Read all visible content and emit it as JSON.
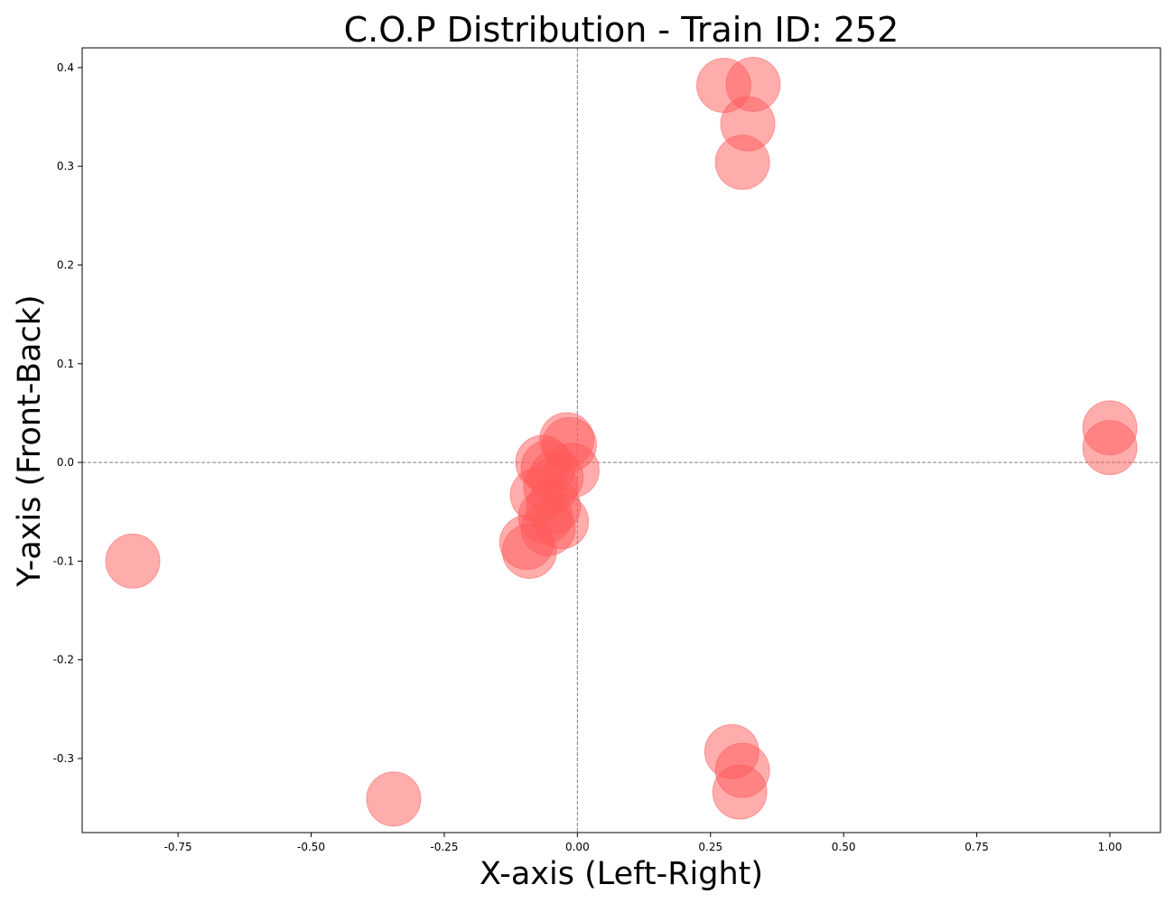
{
  "chart_data": {
    "type": "scatter",
    "title": "C.O.P Distribution - Train ID: 252",
    "xlabel": "X-axis (Left-Right)",
    "ylabel": "Y-axis (Front-Back)",
    "xlim": [
      -0.93,
      1.095
    ],
    "ylim": [
      -0.375,
      0.42
    ],
    "xticks": [
      -0.75,
      -0.5,
      -0.25,
      0.0,
      0.25,
      0.5,
      0.75,
      1.0
    ],
    "xtick_labels": [
      "-0.75",
      "-0.50",
      "-0.25",
      "0.00",
      "0.25",
      "0.50",
      "0.75",
      "1.00"
    ],
    "yticks": [
      -0.3,
      -0.2,
      -0.1,
      0.0,
      0.1,
      0.2,
      0.3,
      0.4
    ],
    "ytick_labels": [
      "-0.3",
      "-0.2",
      "-0.1",
      "0.0",
      "0.1",
      "0.2",
      "0.3",
      "0.4"
    ],
    "grid": false,
    "reference_lines": {
      "x": 0,
      "y": 0,
      "style": "dashed",
      "color": "#808080"
    },
    "marker_color": "#ff5a5a",
    "marker_opacity": 0.5,
    "points": [
      {
        "x": -0.835,
        "y": -0.1
      },
      {
        "x": -0.345,
        "y": -0.341
      },
      {
        "x": 0.275,
        "y": 0.382
      },
      {
        "x": 0.33,
        "y": 0.383
      },
      {
        "x": 0.32,
        "y": 0.343
      },
      {
        "x": 0.31,
        "y": 0.304
      },
      {
        "x": 0.29,
        "y": -0.293
      },
      {
        "x": 0.31,
        "y": -0.312
      },
      {
        "x": 0.305,
        "y": -0.334
      },
      {
        "x": 1.0,
        "y": 0.035
      },
      {
        "x": 1.0,
        "y": 0.015
      },
      {
        "x": -0.02,
        "y": 0.023
      },
      {
        "x": -0.015,
        "y": 0.018
      },
      {
        "x": -0.01,
        "y": -0.008
      },
      {
        "x": -0.065,
        "y": 0.0
      },
      {
        "x": -0.055,
        "y": -0.005
      },
      {
        "x": -0.04,
        "y": -0.015
      },
      {
        "x": -0.05,
        "y": -0.025
      },
      {
        "x": -0.075,
        "y": -0.033
      },
      {
        "x": -0.045,
        "y": -0.045
      },
      {
        "x": -0.06,
        "y": -0.055
      },
      {
        "x": -0.03,
        "y": -0.06
      },
      {
        "x": -0.055,
        "y": -0.067
      },
      {
        "x": -0.095,
        "y": -0.081
      },
      {
        "x": -0.09,
        "y": -0.09
      }
    ]
  }
}
